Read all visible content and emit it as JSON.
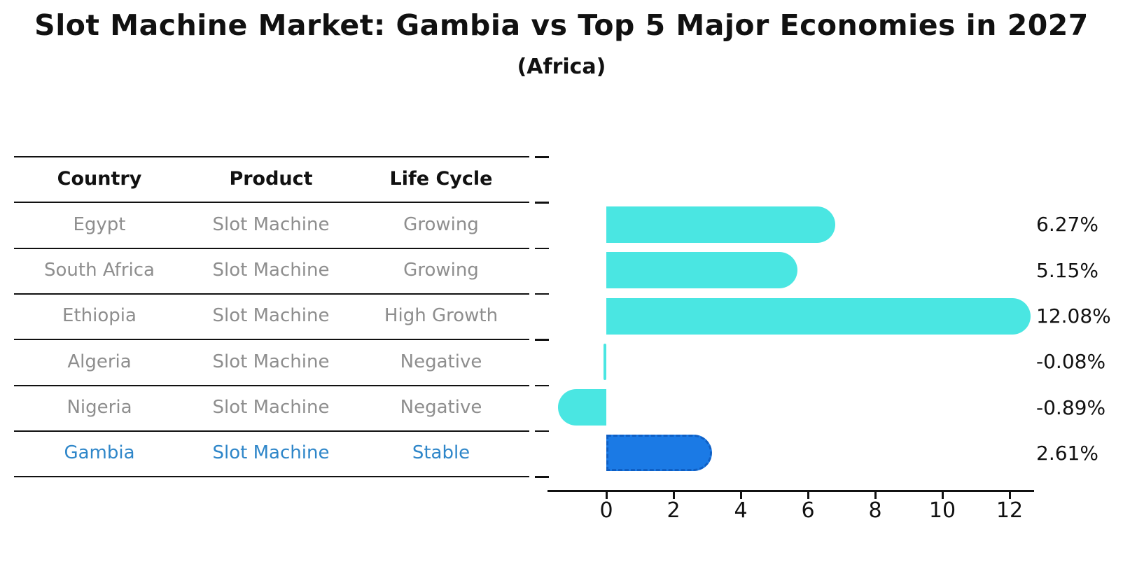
{
  "title": "Slot Machine Market: Gambia vs Top 5 Major Economies in 2027",
  "subtitle": "(Africa)",
  "table": {
    "headers": [
      "Country",
      "Product",
      "Life Cycle"
    ],
    "rows": [
      {
        "country": "Egypt",
        "product": "Slot Machine",
        "life_cycle": "Growing"
      },
      {
        "country": "South Africa",
        "product": "Slot Machine",
        "life_cycle": "Growing"
      },
      {
        "country": "Ethiopia",
        "product": "Slot Machine",
        "life_cycle": "High Growth"
      },
      {
        "country": "Algeria",
        "product": "Slot Machine",
        "life_cycle": "Negative"
      },
      {
        "country": "Nigeria",
        "product": "Slot Machine",
        "life_cycle": "Negative"
      },
      {
        "country": "Gambia",
        "product": "Slot Machine",
        "life_cycle": "Stable"
      }
    ]
  },
  "chart_data": {
    "type": "bar",
    "orientation": "horizontal",
    "categories": [
      "Egypt",
      "South Africa",
      "Ethiopia",
      "Algeria",
      "Nigeria",
      "Gambia"
    ],
    "values": [
      6.27,
      5.15,
      12.08,
      -0.08,
      -0.89,
      2.61
    ],
    "value_labels": [
      "6.27%",
      "5.15%",
      "12.08%",
      "-0.08%",
      "-0.89%",
      "2.61%"
    ],
    "x_ticks": [
      0,
      2,
      4,
      6,
      8,
      10,
      12
    ],
    "xlim": [
      -1.75,
      12.73
    ],
    "grid": false,
    "legend": "none",
    "highlight_index": 5,
    "highlight_style": "dotted-border",
    "bar_color": "#4ae6e2",
    "highlight_color": "#1b7ae5",
    "highlight_border_color": "#0f5fc4",
    "highlight_text_color": "#2e86c9",
    "row_text_color": "#8e8e8e",
    "axis_color": "#111111"
  }
}
